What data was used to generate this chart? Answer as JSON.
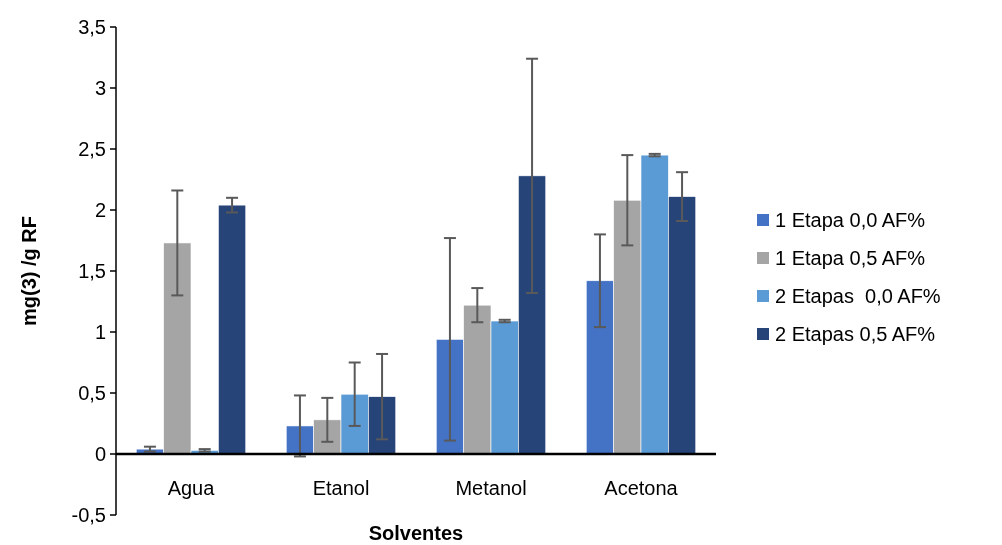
{
  "chart_data": {
    "type": "bar",
    "xlabel": "Solventes",
    "ylabel": "mg(3) /g RF",
    "categories": [
      "Agua",
      "Etanol",
      "Metanol",
      "Acetona"
    ],
    "series": [
      {
        "name": "1 Etapa 0,0 AF%",
        "color": "#4472c4",
        "values": [
          0.04,
          0.23,
          0.94,
          1.42
        ],
        "errors": [
          0.02,
          0.25,
          0.83,
          0.38
        ]
      },
      {
        "name": "1 Etapa 0,5 AF%",
        "color": "#a5a5a5",
        "values": [
          1.73,
          0.28,
          1.22,
          2.08
        ],
        "errors": [
          0.43,
          0.18,
          0.14,
          0.37
        ]
      },
      {
        "name": "2 Etapas  0,0 AF%",
        "color": "#5b9bd5",
        "values": [
          0.03,
          0.49,
          1.09,
          2.45
        ],
        "errors": [
          0.01,
          0.26,
          0.01,
          0.01
        ]
      },
      {
        "name": "2 Etapas 0,5 AF%",
        "color": "#264478",
        "values": [
          2.04,
          0.47,
          2.28,
          2.11
        ],
        "errors": [
          0.06,
          0.35,
          0.96,
          0.2
        ]
      }
    ],
    "ylim": [
      -0.5,
      3.5
    ],
    "yticks": [
      {
        "value": -0.5,
        "label": "-0,5"
      },
      0,
      {
        "value": 0.5,
        "label": "0,5"
      },
      1,
      {
        "value": 1.5,
        "label": "1,5"
      },
      2,
      {
        "value": 2.5,
        "label": "2,5"
      },
      3,
      {
        "value": 3.5,
        "label": "3,5"
      }
    ],
    "grid": false,
    "legend": "right"
  }
}
